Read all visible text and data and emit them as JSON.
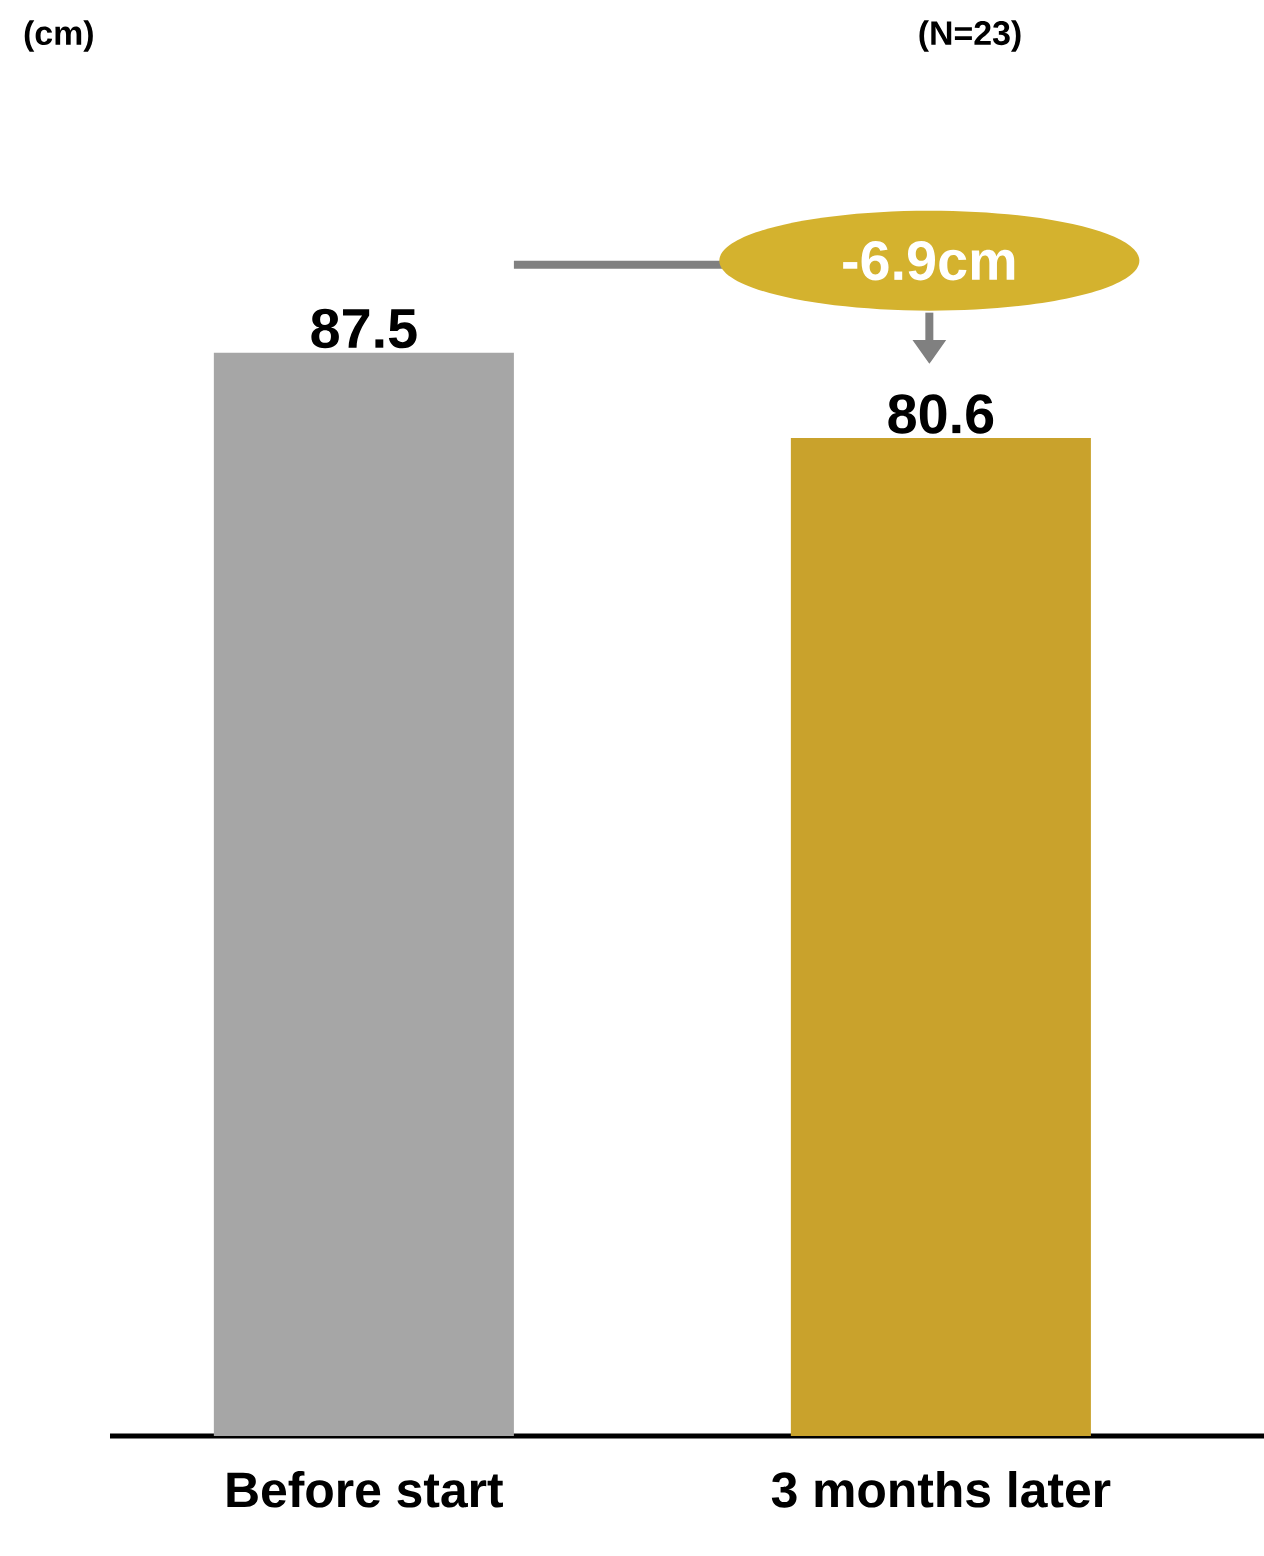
{
  "chart_data": {
    "type": "bar",
    "subtitle": "(N=23)",
    "categories": [
      "Before start",
      "3 months later"
    ],
    "values": [
      87.5,
      80.6
    ],
    "colors": [
      "#a6a6a6",
      "#c9a22c"
    ],
    "data_labels": true,
    "annotations": [
      "-6.9cm",
      "(cm)"
    ]
  }
}
